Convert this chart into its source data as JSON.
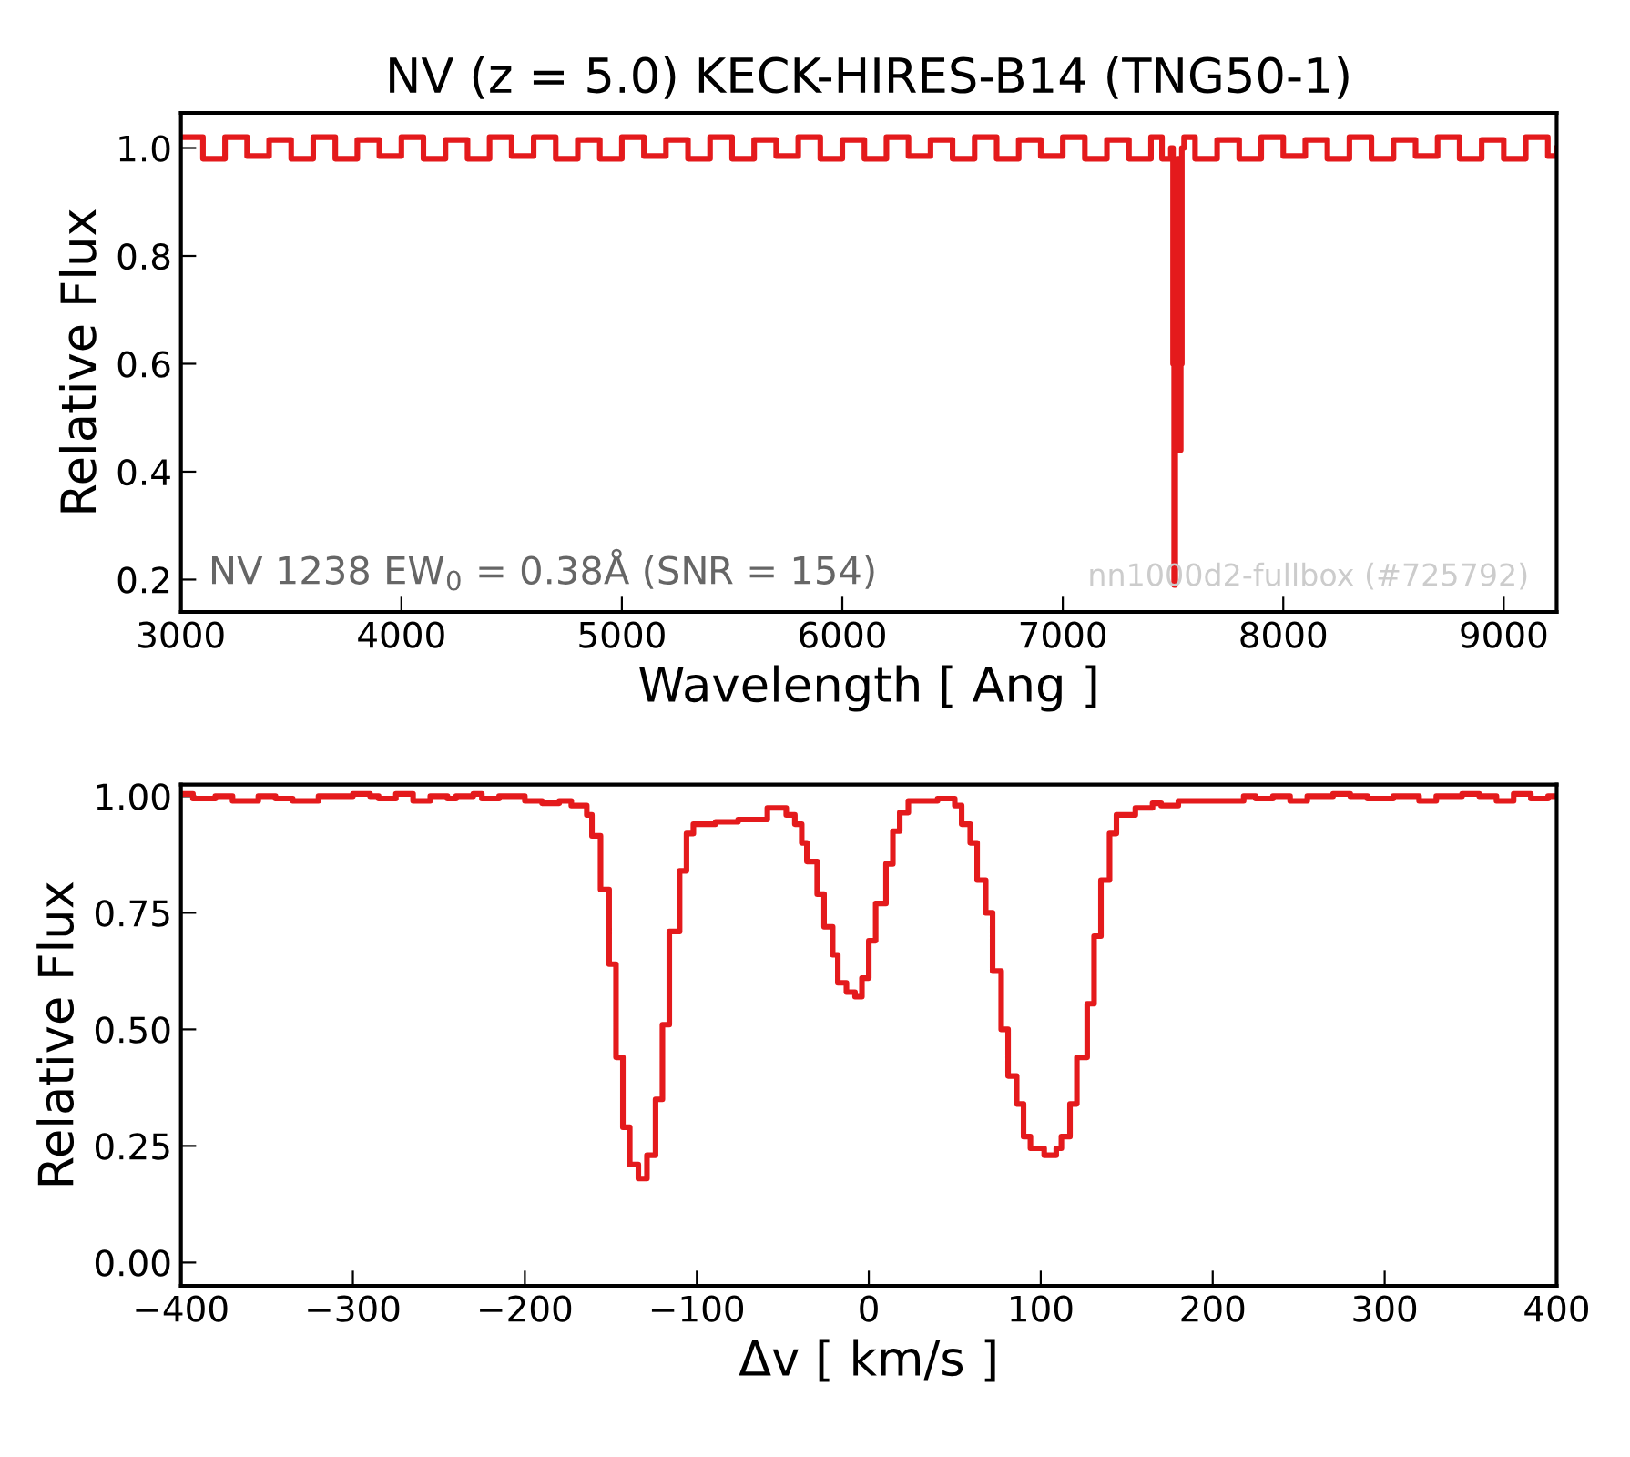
{
  "chart_data": [
    {
      "type": "step",
      "title": "NV (z = 5.0) KECK-HIRES-B14 (TNG50-1)",
      "xlabel": "Wavelength [ Ang ]",
      "ylabel": "Relative Flux",
      "series": [
        {
          "color": "#e41a1c",
          "x": [
            3000,
            3100,
            3200,
            3300,
            3400,
            3500,
            3600,
            3700,
            3800,
            3900,
            4000,
            4100,
            4200,
            4300,
            4400,
            4500,
            4600,
            4700,
            4800,
            4900,
            5000,
            5100,
            5200,
            5300,
            5400,
            5500,
            5600,
            5700,
            5800,
            5900,
            6000,
            6100,
            6200,
            6300,
            6400,
            6500,
            6600,
            6700,
            6800,
            6900,
            7000,
            7100,
            7200,
            7300,
            7400,
            7450,
            7490,
            7500,
            7505,
            7510,
            7520,
            7530,
            7535,
            7540,
            7550,
            7600,
            7700,
            7800,
            7900,
            8000,
            8100,
            8200,
            8300,
            8400,
            8500,
            8600,
            8700,
            8800,
            8900,
            9000,
            9100,
            9200,
            9240
          ],
          "values": [
            1.02,
            0.98,
            1.02,
            0.985,
            1.015,
            0.98,
            1.02,
            0.98,
            1.015,
            0.985,
            1.02,
            0.98,
            1.015,
            0.98,
            1.02,
            0.985,
            1.02,
            0.98,
            1.015,
            0.98,
            1.02,
            0.985,
            1.015,
            0.98,
            1.02,
            0.98,
            1.015,
            0.985,
            1.02,
            0.98,
            1.015,
            0.98,
            1.02,
            0.985,
            1.015,
            0.98,
            1.02,
            0.98,
            1.015,
            0.985,
            1.02,
            0.98,
            1.015,
            0.98,
            1.02,
            0.98,
            1.0,
            0.6,
            0.19,
            0.7,
            0.98,
            0.44,
            0.6,
            1.0,
            1.02,
            0.98,
            1.015,
            0.98,
            1.02,
            0.985,
            1.015,
            0.98,
            1.02,
            0.98,
            1.015,
            0.985,
            1.02,
            0.98,
            1.015,
            0.98,
            1.02,
            0.985,
            1.0
          ]
        }
      ],
      "xlim": [
        3000,
        9240
      ],
      "xticks": [
        3000,
        4000,
        5000,
        6000,
        7000,
        8000,
        9000
      ],
      "ylim": [
        0.14,
        1.065
      ],
      "yticks": [
        {
          "value": 0.2,
          "label": "0.2"
        },
        {
          "value": 0.4,
          "label": "0.4"
        },
        {
          "value": 0.6,
          "label": "0.6"
        },
        {
          "value": 0.8,
          "label": "0.8"
        },
        {
          "value": 1.0,
          "label": "1.0"
        }
      ],
      "grid": false,
      "legend": false,
      "annotations": [
        "NV 1238 EW$_{0}$ = 0.38Å (SNR = 154)",
        "nn1000d2-fullbox (#725792)"
      ]
    },
    {
      "type": "step",
      "xlabel": "Δv [ km/s ]",
      "ylabel": "Relative Flux",
      "series": [
        {
          "color": "#e41a1c",
          "x": [
            -400,
            -393,
            -380,
            -370,
            -355,
            -345,
            -335,
            -320,
            -300,
            -290,
            -285,
            -275,
            -265,
            -255,
            -245,
            -240,
            -230,
            -225,
            -215,
            -200,
            -190,
            -180,
            -173,
            -164,
            -161,
            -156,
            -151,
            -147,
            -143,
            -139,
            -134,
            -129,
            -124,
            -120,
            -116,
            -110,
            -106,
            -102,
            -89,
            -76,
            -59,
            -48,
            -43,
            -39,
            -36,
            -30,
            -26,
            -21,
            -18,
            -13,
            -8,
            -4,
            0,
            4,
            10,
            14,
            18,
            23,
            40,
            50,
            54,
            59,
            63,
            68,
            72,
            77,
            81,
            86,
            90,
            94,
            102,
            109,
            112,
            117,
            121,
            127,
            131,
            135,
            140,
            144,
            155,
            165,
            170,
            180,
            201,
            218,
            225,
            235,
            245,
            255,
            270,
            280,
            290,
            305,
            320,
            330,
            345,
            355,
            365,
            375,
            385,
            395,
            400
          ],
          "values": [
            1.005,
            0.995,
            1.0,
            0.99,
            1.0,
            0.995,
            0.99,
            1.0,
            1.005,
            1.0,
            0.995,
            1.005,
            0.99,
            1.0,
            0.995,
            1.0,
            1.005,
            0.995,
            1.0,
            0.99,
            0.985,
            0.99,
            0.98,
            0.96,
            0.915,
            0.8,
            0.64,
            0.44,
            0.29,
            0.21,
            0.18,
            0.23,
            0.35,
            0.51,
            0.71,
            0.84,
            0.92,
            0.94,
            0.945,
            0.95,
            0.975,
            0.96,
            0.94,
            0.9,
            0.86,
            0.79,
            0.72,
            0.66,
            0.6,
            0.58,
            0.57,
            0.61,
            0.69,
            0.77,
            0.855,
            0.925,
            0.965,
            0.99,
            0.995,
            0.98,
            0.94,
            0.9,
            0.82,
            0.75,
            0.625,
            0.5,
            0.4,
            0.34,
            0.27,
            0.245,
            0.23,
            0.245,
            0.27,
            0.34,
            0.44,
            0.555,
            0.7,
            0.82,
            0.92,
            0.96,
            0.975,
            0.985,
            0.98,
            0.99,
            0.99,
            1.0,
            0.995,
            1.0,
            0.99,
            1.0,
            1.005,
            1.0,
            0.995,
            1.0,
            0.99,
            1.0,
            1.005,
            1.0,
            0.99,
            1.005,
            0.995,
            1.0,
            1.0
          ]
        }
      ],
      "xlim": [
        -400,
        400
      ],
      "xticks": [
        {
          "value": -400,
          "label": "−400"
        },
        {
          "value": -300,
          "label": "−300"
        },
        {
          "value": -200,
          "label": "−200"
        },
        {
          "value": -100,
          "label": "−100"
        },
        0,
        100,
        200,
        300,
        400
      ],
      "ylim": [
        -0.05,
        1.025
      ],
      "yticks": [
        {
          "value": 0.0,
          "label": "0.00"
        },
        {
          "value": 0.25,
          "label": "0.25"
        },
        {
          "value": 0.5,
          "label": "0.50"
        },
        {
          "value": 0.75,
          "label": "0.75"
        },
        {
          "value": 1.0,
          "label": "1.00"
        }
      ],
      "grid": false,
      "legend": false
    }
  ]
}
